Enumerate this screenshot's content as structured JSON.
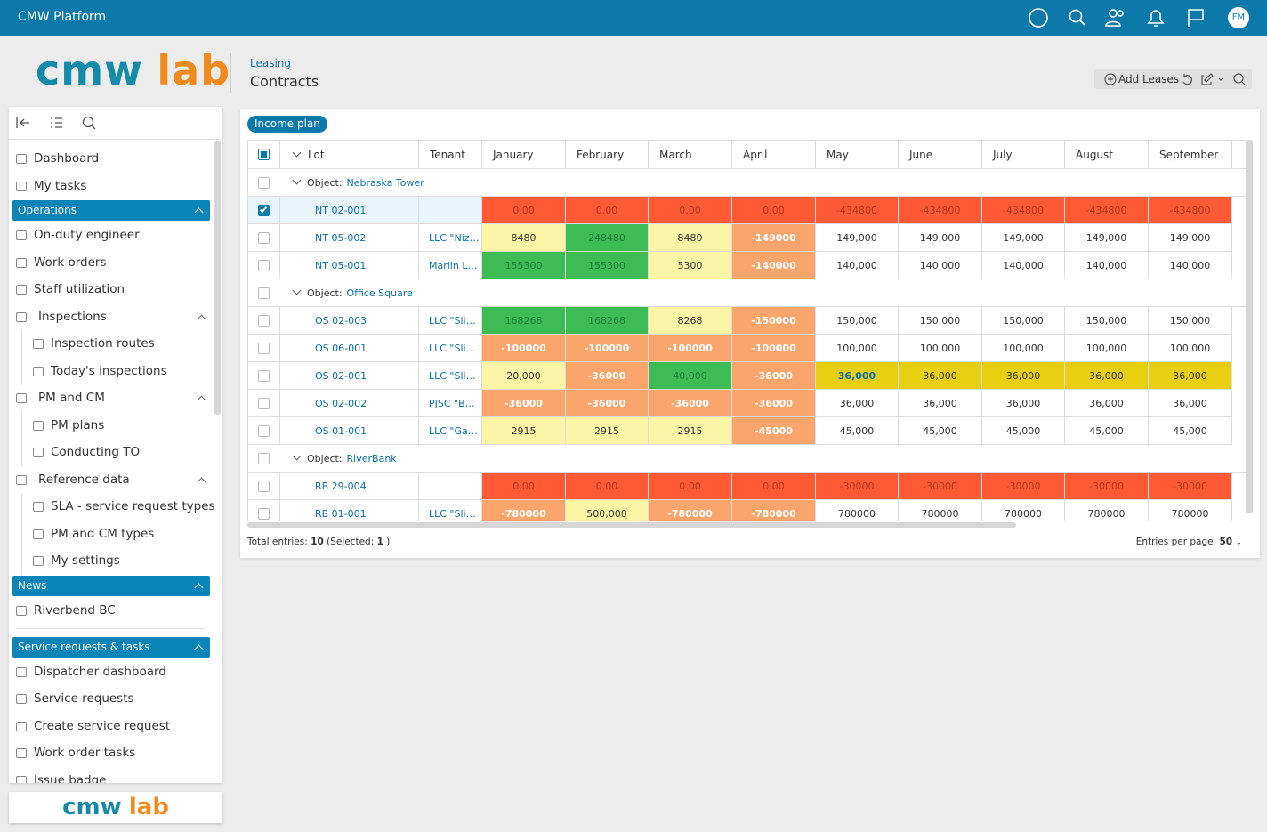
{
  "header": {
    "app_name": "CMW Platform",
    "avatar": "FM"
  },
  "logo": {
    "part1": "cmw",
    "part2": "lab"
  },
  "breadcrumb": {
    "section": "Leasing",
    "title": "Contracts"
  },
  "toolbar": {
    "add_button": "Add Leases"
  },
  "sidebar": {
    "items": [
      {
        "kind": "item",
        "label": "Dashboard"
      },
      {
        "kind": "item",
        "label": "My tasks"
      },
      {
        "kind": "section",
        "label": "Operations"
      },
      {
        "kind": "item",
        "label": "On-duty engineer"
      },
      {
        "kind": "item",
        "label": "Work orders"
      },
      {
        "kind": "item",
        "label": "Staff utilization"
      },
      {
        "kind": "group",
        "label": "Inspections"
      },
      {
        "kind": "sub",
        "label": "Inspection routes"
      },
      {
        "kind": "sub",
        "label": "Today's inspections"
      },
      {
        "kind": "group",
        "label": "PM and CM"
      },
      {
        "kind": "sub",
        "label": "PM plans"
      },
      {
        "kind": "sub",
        "label": "Conducting TO"
      },
      {
        "kind": "group",
        "label": "Reference data"
      },
      {
        "kind": "sub",
        "label": "SLA - service request types"
      },
      {
        "kind": "sub",
        "label": "PM and CM types"
      },
      {
        "kind": "sub",
        "label": "My settings"
      },
      {
        "kind": "section",
        "label": "News"
      },
      {
        "kind": "item",
        "label": "Riverbend BC"
      },
      {
        "kind": "section",
        "label": "Service requests & tasks",
        "separated": true
      },
      {
        "kind": "item",
        "label": "Dispatcher dashboard"
      },
      {
        "kind": "item",
        "label": "Service requests"
      },
      {
        "kind": "item",
        "label": "Create service request"
      },
      {
        "kind": "item",
        "label": "Work order tasks"
      },
      {
        "kind": "item",
        "label": "Issue badge"
      }
    ]
  },
  "tab": "Income plan",
  "table": {
    "columns": [
      "Lot",
      "Tenant",
      "January",
      "February",
      "March",
      "April",
      "May",
      "June",
      "July",
      "August",
      "September"
    ],
    "groups": [
      {
        "prefix": "Object:",
        "name": "Nebraska Tower",
        "rows": [
          {
            "lot": "NT 02-001",
            "selected": true,
            "cells": [
              {
                "text": "0.00",
                "style": "red"
              },
              {
                "text": "0.00",
                "style": "red"
              },
              {
                "text": "0.00",
                "style": "red"
              },
              {
                "text": "0.00",
                "style": "red"
              },
              {
                "text": "-434800",
                "style": "red"
              },
              {
                "text": "-434800",
                "style": "red"
              },
              {
                "text": "-434800",
                "style": "red"
              },
              {
                "text": "-434800",
                "style": "red"
              },
              {
                "text": "-434800",
                "style": "red"
              }
            ]
          },
          {
            "lot": "NT 05-002",
            "tenant": "LLC \"Niz…",
            "cells": [
              {
                "text": "8480",
                "style": "light-yellow"
              },
              {
                "text": "248480",
                "style": "green"
              },
              {
                "text": "8480",
                "style": "light-yellow"
              },
              {
                "text": "-149000",
                "style": "orange"
              },
              {
                "text": "149,000",
                "style": "white"
              },
              {
                "text": "149,000",
                "style": "white"
              },
              {
                "text": "149,000",
                "style": "white"
              },
              {
                "text": "149,000",
                "style": "white"
              },
              {
                "text": "149,000",
                "style": "white"
              }
            ]
          },
          {
            "lot": "NT 05-001",
            "tenant": "Marlin L…",
            "cells": [
              {
                "text": "155300",
                "style": "green"
              },
              {
                "text": "155300",
                "style": "green"
              },
              {
                "text": "5300",
                "style": "light-yellow"
              },
              {
                "text": "-140000",
                "style": "orange"
              },
              {
                "text": "140,000",
                "style": "white"
              },
              {
                "text": "140,000",
                "style": "white"
              },
              {
                "text": "140,000",
                "style": "white"
              },
              {
                "text": "140,000",
                "style": "white"
              },
              {
                "text": "140,000",
                "style": "white"
              }
            ]
          }
        ]
      },
      {
        "prefix": "Object:",
        "name": "Office Square",
        "rows": [
          {
            "lot": "OS 02-003",
            "tenant": "LLC \"Sli…",
            "cells": [
              {
                "text": "168268",
                "style": "green"
              },
              {
                "text": "168268",
                "style": "green"
              },
              {
                "text": "8268",
                "style": "light-yellow"
              },
              {
                "text": "-150000",
                "style": "orange"
              },
              {
                "text": "150,000",
                "style": "white"
              },
              {
                "text": "150,000",
                "style": "white"
              },
              {
                "text": "150,000",
                "style": "white"
              },
              {
                "text": "150,000",
                "style": "white"
              },
              {
                "text": "150,000",
                "style": "white"
              }
            ]
          },
          {
            "lot": "OS 06-001",
            "tenant": "LLC \"Sli…",
            "cells": [
              {
                "text": "-100000",
                "style": "orange"
              },
              {
                "text": "-100000",
                "style": "orange"
              },
              {
                "text": "-100000",
                "style": "orange"
              },
              {
                "text": "-100000",
                "style": "orange"
              },
              {
                "text": "100,000",
                "style": "white"
              },
              {
                "text": "100,000",
                "style": "white"
              },
              {
                "text": "100,000",
                "style": "white"
              },
              {
                "text": "100,000",
                "style": "white"
              },
              {
                "text": "100,000",
                "style": "white"
              }
            ]
          },
          {
            "lot": "OS 02-001",
            "tenant": "LLC \"Sli…",
            "cells": [
              {
                "text": "20,000",
                "style": "light-yellow"
              },
              {
                "text": "-36000",
                "style": "orange"
              },
              {
                "text": "40,000",
                "style": "green"
              },
              {
                "text": "-36000",
                "style": "orange"
              },
              {
                "text": "36,000",
                "style": "yellow-focus"
              },
              {
                "text": "36,000",
                "style": "yellow"
              },
              {
                "text": "36,000",
                "style": "yellow"
              },
              {
                "text": "36,000",
                "style": "yellow"
              },
              {
                "text": "36,000",
                "style": "yellow"
              }
            ]
          },
          {
            "lot": "OS 02-002",
            "tenant": "PJSC \"B…",
            "cells": [
              {
                "text": "-36000",
                "style": "orange"
              },
              {
                "text": "-36000",
                "style": "orange"
              },
              {
                "text": "-36000",
                "style": "orange"
              },
              {
                "text": "-36000",
                "style": "orange"
              },
              {
                "text": "36,000",
                "style": "white"
              },
              {
                "text": "36,000",
                "style": "white"
              },
              {
                "text": "36,000",
                "style": "white"
              },
              {
                "text": "36,000",
                "style": "white"
              },
              {
                "text": "36,000",
                "style": "white"
              }
            ]
          },
          {
            "lot": "OS 01-001",
            "tenant": "LLC \"Ga…",
            "cells": [
              {
                "text": "2915",
                "style": "light-yellow"
              },
              {
                "text": "2915",
                "style": "light-yellow"
              },
              {
                "text": "2915",
                "style": "light-yellow"
              },
              {
                "text": "-45000",
                "style": "orange"
              },
              {
                "text": "45,000",
                "style": "white"
              },
              {
                "text": "45,000",
                "style": "white"
              },
              {
                "text": "45,000",
                "style": "white"
              },
              {
                "text": "45,000",
                "style": "white"
              },
              {
                "text": "45,000",
                "style": "white"
              }
            ]
          }
        ]
      },
      {
        "prefix": "Object:",
        "name": "RiverBank",
        "rows": [
          {
            "lot": "RB 29-004",
            "cells": [
              {
                "text": "0.00",
                "style": "red"
              },
              {
                "text": "0.00",
                "style": "red"
              },
              {
                "text": "0.00",
                "style": "red"
              },
              {
                "text": "0.00",
                "style": "red"
              },
              {
                "text": "-30000",
                "style": "red"
              },
              {
                "text": "-30000",
                "style": "red"
              },
              {
                "text": "-30000",
                "style": "red"
              },
              {
                "text": "-30000",
                "style": "red"
              },
              {
                "text": "-30000",
                "style": "red"
              }
            ]
          },
          {
            "lot": "RB 01-001",
            "tenant": "LLC \"Sli…",
            "cells": [
              {
                "text": "-780000",
                "style": "orange"
              },
              {
                "text": "500,000",
                "style": "light-yellow"
              },
              {
                "text": "-780000",
                "style": "orange"
              },
              {
                "text": "-780000",
                "style": "orange"
              },
              {
                "text": "780000",
                "style": "white"
              },
              {
                "text": "780000",
                "style": "white"
              },
              {
                "text": "780000",
                "style": "white"
              },
              {
                "text": "780000",
                "style": "white"
              },
              {
                "text": "780000",
                "style": "white"
              }
            ]
          }
        ]
      }
    ]
  },
  "footer": {
    "total_label": "Total entries:",
    "total": "10",
    "selected_label": "(Selected:",
    "selected": "1",
    "selected_close": ")",
    "per_page_label": "Entries per page:",
    "per_page": "50"
  }
}
